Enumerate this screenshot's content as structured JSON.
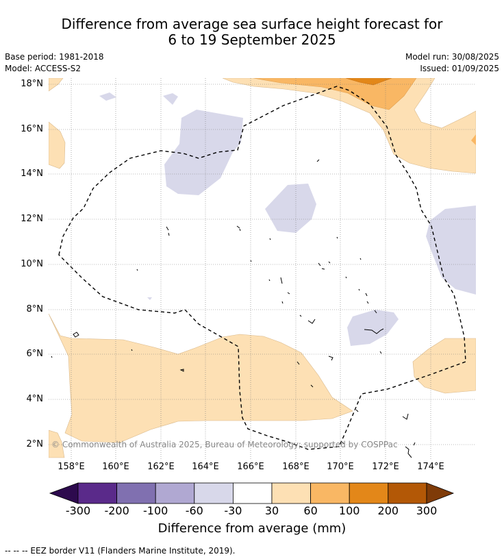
{
  "title_line1": "Difference from average sea surface height forecast for",
  "title_line2": "6 to 19 September 2025",
  "base_period": "Base period: 1981-2018",
  "model": "Model: ACCESS-S2",
  "model_run": "Model run: 30/08/2025",
  "issued": "Issued: 01/09/2025",
  "copyright": "© Commonwealth of Australia 2025, Bureau of Meteorology; supported by COSPPac",
  "lat_labels": [
    "18°N",
    "16°N",
    "14°N",
    "12°N",
    "10°N",
    "8°N",
    "6°N",
    "4°N",
    "2°N"
  ],
  "lon_labels": [
    "158°E",
    "160°E",
    "162°E",
    "164°E",
    "166°E",
    "168°E",
    "170°E",
    "172°E",
    "174°E"
  ],
  "colorbar": {
    "ticks": [
      "-300",
      "-200",
      "-100",
      "-60",
      "-30",
      "30",
      "60",
      "100",
      "200",
      "300"
    ],
    "colors": [
      "#2d0a4e",
      "#5a2a8a",
      "#8070b0",
      "#b0a8d2",
      "#d8d8ea",
      "#ffffff",
      "#fde0b4",
      "#f9b764",
      "#e38719",
      "#b35806",
      "#7f3b08"
    ],
    "label": "Difference from average (mm)"
  },
  "legend_text": "--  --  -- EEZ border V11 (Flanders Marine Institute, 2019)."
}
